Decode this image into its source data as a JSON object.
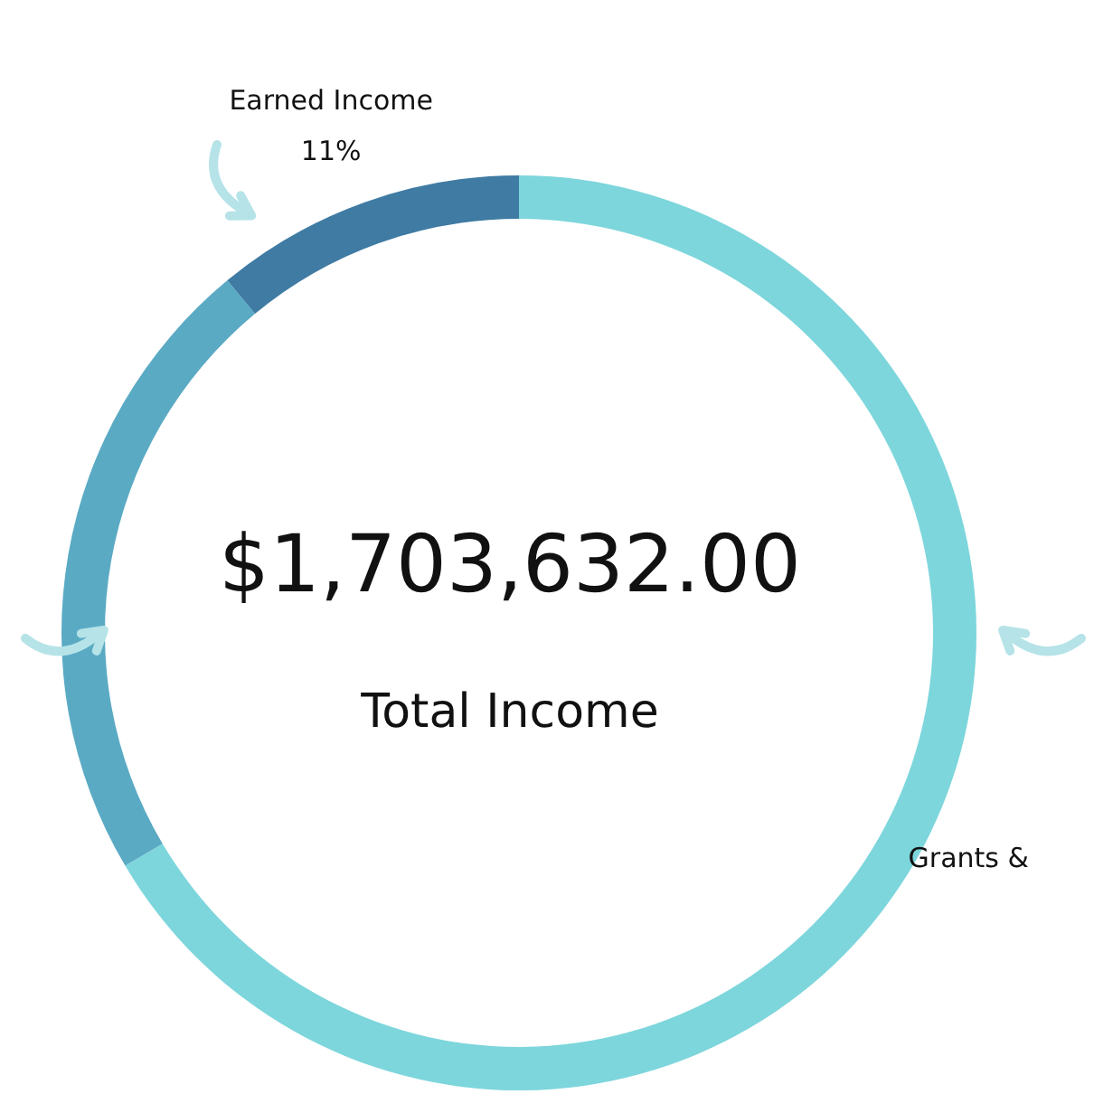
{
  "chart_data": {
    "type": "donut",
    "title": "$1,703,632.00",
    "subtitle": "Total Income",
    "categories": [
      "Grants &",
      null,
      "Earned Income"
    ],
    "values": [
      66.5,
      22.5,
      11
    ],
    "colors": [
      "#7dd6dc",
      "#5aaac4",
      "#3f7ba3"
    ],
    "value_labels": [
      null,
      null,
      "11%"
    ],
    "legend": false
  }
}
